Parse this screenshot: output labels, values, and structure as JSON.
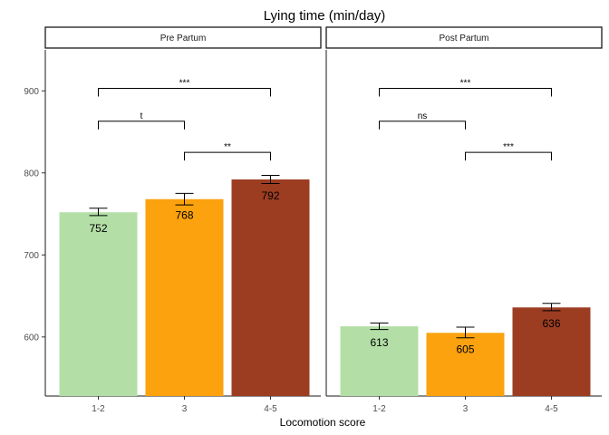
{
  "chart_data": {
    "type": "bar",
    "title": "Lying time (min/day)",
    "xlabel": "Locomotion score",
    "ylabel": "",
    "ylim": [
      528,
      950
    ],
    "yticks": [
      600,
      700,
      800,
      900
    ],
    "grid": false,
    "categories": [
      "1-2",
      "3",
      "4-5"
    ],
    "colors": [
      "#b3dfa6",
      "#fba20e",
      "#9c3d22"
    ],
    "panels": [
      {
        "name": "Pre Partum",
        "values": [
          752,
          768,
          792
        ],
        "value_labels": [
          "752",
          "768",
          "792"
        ],
        "error": [
          [
            748,
            757
          ],
          [
            761,
            775
          ],
          [
            787,
            797
          ]
        ],
        "comparisons": [
          {
            "from": 0,
            "to": 2,
            "y": 903,
            "label": "***"
          },
          {
            "from": 0,
            "to": 1,
            "y": 863,
            "label": "t"
          },
          {
            "from": 1,
            "to": 2,
            "y": 825,
            "label": "**"
          }
        ]
      },
      {
        "name": "Post Partum",
        "values": [
          613,
          605,
          636
        ],
        "value_labels": [
          "613",
          "605",
          "636"
        ],
        "error": [
          [
            609,
            617
          ],
          [
            599,
            612
          ],
          [
            632,
            641
          ]
        ],
        "comparisons": [
          {
            "from": 0,
            "to": 2,
            "y": 903,
            "label": "***"
          },
          {
            "from": 0,
            "to": 1,
            "y": 863,
            "label": "ns"
          },
          {
            "from": 1,
            "to": 2,
            "y": 825,
            "label": "***"
          }
        ]
      }
    ]
  }
}
